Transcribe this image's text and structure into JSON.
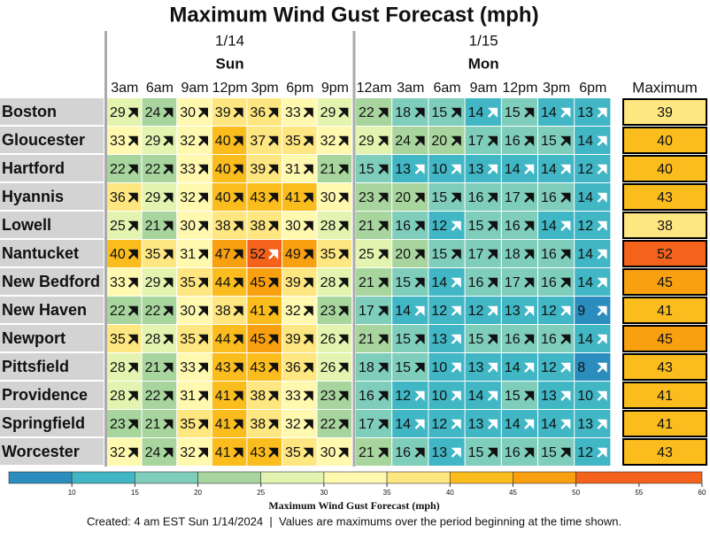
{
  "chart_data": {
    "type": "heatmap",
    "title": "Maximum Wind Gust Forecast (mph)",
    "groups": [
      {
        "date": "1/14",
        "day": "Sun",
        "categories": [
          "3am",
          "6am",
          "9am",
          "12pm",
          "3pm",
          "6pm",
          "9pm"
        ]
      },
      {
        "date": "1/15",
        "day": "Mon",
        "categories": [
          "12am",
          "3am",
          "6am",
          "9am",
          "12pm",
          "3pm",
          "6pm"
        ]
      }
    ],
    "rows": [
      "Boston",
      "Gloucester",
      "Hartford",
      "Hyannis",
      "Lowell",
      "Nantucket",
      "New Bedford",
      "New Haven",
      "Newport",
      "Pittsfield",
      "Providence",
      "Springfield",
      "Worcester"
    ],
    "values": [
      [
        29,
        24,
        30,
        39,
        36,
        33,
        29,
        22,
        18,
        15,
        14,
        15,
        14,
        13
      ],
      [
        33,
        29,
        32,
        40,
        37,
        35,
        32,
        29,
        24,
        20,
        17,
        16,
        15,
        14
      ],
      [
        22,
        22,
        33,
        40,
        39,
        31,
        21,
        15,
        13,
        10,
        13,
        14,
        14,
        12
      ],
      [
        36,
        29,
        32,
        40,
        43,
        41,
        30,
        23,
        20,
        15,
        16,
        17,
        16,
        14
      ],
      [
        25,
        21,
        30,
        38,
        38,
        30,
        28,
        21,
        16,
        12,
        15,
        16,
        14,
        12
      ],
      [
        40,
        35,
        31,
        47,
        52,
        49,
        35,
        25,
        20,
        15,
        17,
        18,
        16,
        14
      ],
      [
        33,
        29,
        35,
        44,
        45,
        39,
        28,
        21,
        15,
        14,
        16,
        17,
        16,
        14
      ],
      [
        22,
        22,
        30,
        38,
        41,
        32,
        23,
        17,
        14,
        12,
        12,
        13,
        12,
        9
      ],
      [
        35,
        28,
        35,
        44,
        45,
        39,
        26,
        21,
        15,
        13,
        15,
        16,
        16,
        14
      ],
      [
        28,
        21,
        33,
        43,
        43,
        36,
        26,
        18,
        15,
        10,
        13,
        14,
        12,
        8
      ],
      [
        28,
        22,
        31,
        41,
        38,
        33,
        23,
        16,
        12,
        10,
        14,
        15,
        13,
        10
      ],
      [
        23,
        21,
        35,
        41,
        38,
        32,
        22,
        17,
        14,
        12,
        13,
        14,
        14,
        13
      ],
      [
        32,
        24,
        32,
        41,
        43,
        35,
        30,
        21,
        16,
        13,
        15,
        16,
        15,
        12
      ]
    ],
    "max_label": "Maximum",
    "max": [
      39,
      40,
      40,
      43,
      38,
      52,
      45,
      41,
      45,
      43,
      41,
      41,
      43
    ],
    "colorscale": {
      "title": "Maximum Wind Gust Forecast (mph)",
      "bins": [
        5,
        10,
        15,
        20,
        25,
        30,
        35,
        40,
        45,
        50,
        60
      ],
      "colors": [
        "#2b8cbe",
        "#41b6c4",
        "#7fcdbb",
        "#a8d59e",
        "#e3f4b0",
        "#fff9b0",
        "#fee680",
        "#fbbd1e",
        "#f9a010",
        "#f4621c"
      ],
      "xlim": [
        5,
        60
      ],
      "xticks": [
        10,
        15,
        20,
        25,
        30,
        35,
        40,
        45,
        50,
        55,
        60
      ]
    },
    "note": "Created: 4 am EST Sun 1/14/2024  |  Values are maximums over the period beginning at the time shown."
  }
}
